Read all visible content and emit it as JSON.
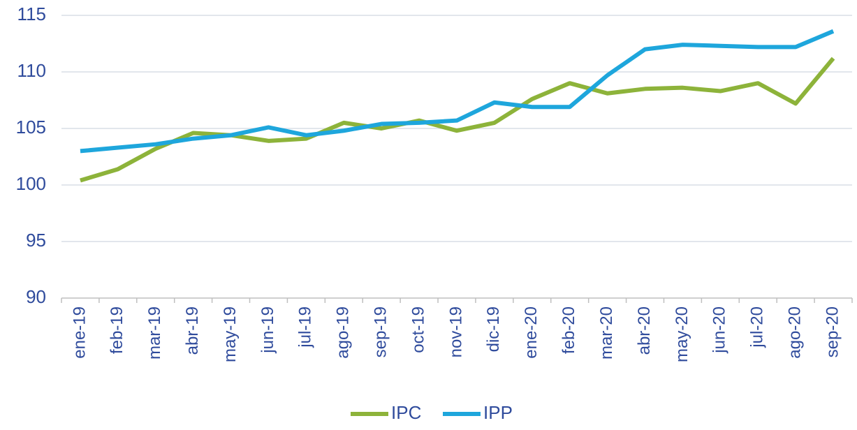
{
  "chart_data": {
    "type": "line",
    "categories": [
      "ene-19",
      "feb-19",
      "mar-19",
      "abr-19",
      "may-19",
      "jun-19",
      "jul-19",
      "ago-19",
      "sep-19",
      "oct-19",
      "nov-19",
      "dic-19",
      "ene-20",
      "feb-20",
      "mar-20",
      "abr-20",
      "may-20",
      "jun-20",
      "jul-20",
      "ago-20",
      "sep-20"
    ],
    "series": [
      {
        "name": "IPC",
        "color": "#8db33a",
        "values": [
          100.4,
          101.4,
          103.2,
          104.6,
          104.4,
          103.9,
          104.1,
          105.5,
          105.0,
          105.7,
          104.8,
          105.5,
          107.6,
          109.0,
          108.1,
          108.5,
          108.6,
          108.3,
          109.0,
          107.2,
          111.2
        ]
      },
      {
        "name": "IPP",
        "color": "#1ea6dc",
        "values": [
          103.0,
          103.3,
          103.6,
          104.1,
          104.4,
          105.1,
          104.4,
          104.8,
          105.4,
          105.5,
          105.7,
          107.3,
          106.9,
          106.9,
          109.7,
          112.0,
          112.4,
          112.3,
          112.2,
          112.2,
          113.6
        ]
      }
    ],
    "ylim": [
      90,
      115
    ],
    "yticks": [
      90,
      95,
      100,
      105,
      110,
      115
    ],
    "grid": true,
    "legend": "bottom"
  }
}
